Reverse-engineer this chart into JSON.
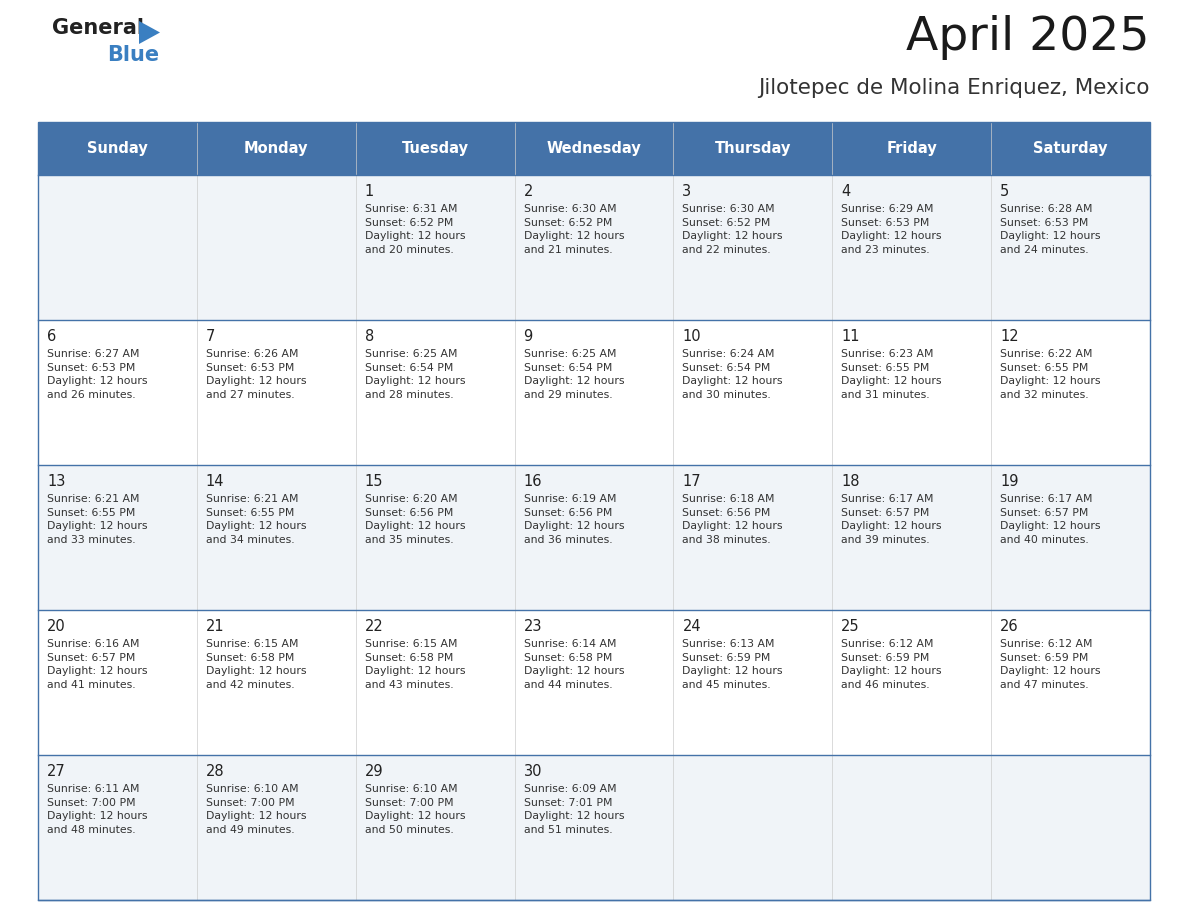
{
  "title": "April 2025",
  "subtitle": "Jilotepec de Molina Enriquez, Mexico",
  "header_bg_color": "#4472a8",
  "header_text_color": "#ffffff",
  "row_bg_even": "#f0f4f8",
  "row_bg_odd": "#ffffff",
  "border_color": "#4472a8",
  "text_color": "#222222",
  "info_color": "#333333",
  "days_of_week": [
    "Sunday",
    "Monday",
    "Tuesday",
    "Wednesday",
    "Thursday",
    "Friday",
    "Saturday"
  ],
  "weeks": [
    [
      {
        "day": "",
        "info": ""
      },
      {
        "day": "",
        "info": ""
      },
      {
        "day": "1",
        "info": "Sunrise: 6:31 AM\nSunset: 6:52 PM\nDaylight: 12 hours\nand 20 minutes."
      },
      {
        "day": "2",
        "info": "Sunrise: 6:30 AM\nSunset: 6:52 PM\nDaylight: 12 hours\nand 21 minutes."
      },
      {
        "day": "3",
        "info": "Sunrise: 6:30 AM\nSunset: 6:52 PM\nDaylight: 12 hours\nand 22 minutes."
      },
      {
        "day": "4",
        "info": "Sunrise: 6:29 AM\nSunset: 6:53 PM\nDaylight: 12 hours\nand 23 minutes."
      },
      {
        "day": "5",
        "info": "Sunrise: 6:28 AM\nSunset: 6:53 PM\nDaylight: 12 hours\nand 24 minutes."
      }
    ],
    [
      {
        "day": "6",
        "info": "Sunrise: 6:27 AM\nSunset: 6:53 PM\nDaylight: 12 hours\nand 26 minutes."
      },
      {
        "day": "7",
        "info": "Sunrise: 6:26 AM\nSunset: 6:53 PM\nDaylight: 12 hours\nand 27 minutes."
      },
      {
        "day": "8",
        "info": "Sunrise: 6:25 AM\nSunset: 6:54 PM\nDaylight: 12 hours\nand 28 minutes."
      },
      {
        "day": "9",
        "info": "Sunrise: 6:25 AM\nSunset: 6:54 PM\nDaylight: 12 hours\nand 29 minutes."
      },
      {
        "day": "10",
        "info": "Sunrise: 6:24 AM\nSunset: 6:54 PM\nDaylight: 12 hours\nand 30 minutes."
      },
      {
        "day": "11",
        "info": "Sunrise: 6:23 AM\nSunset: 6:55 PM\nDaylight: 12 hours\nand 31 minutes."
      },
      {
        "day": "12",
        "info": "Sunrise: 6:22 AM\nSunset: 6:55 PM\nDaylight: 12 hours\nand 32 minutes."
      }
    ],
    [
      {
        "day": "13",
        "info": "Sunrise: 6:21 AM\nSunset: 6:55 PM\nDaylight: 12 hours\nand 33 minutes."
      },
      {
        "day": "14",
        "info": "Sunrise: 6:21 AM\nSunset: 6:55 PM\nDaylight: 12 hours\nand 34 minutes."
      },
      {
        "day": "15",
        "info": "Sunrise: 6:20 AM\nSunset: 6:56 PM\nDaylight: 12 hours\nand 35 minutes."
      },
      {
        "day": "16",
        "info": "Sunrise: 6:19 AM\nSunset: 6:56 PM\nDaylight: 12 hours\nand 36 minutes."
      },
      {
        "day": "17",
        "info": "Sunrise: 6:18 AM\nSunset: 6:56 PM\nDaylight: 12 hours\nand 38 minutes."
      },
      {
        "day": "18",
        "info": "Sunrise: 6:17 AM\nSunset: 6:57 PM\nDaylight: 12 hours\nand 39 minutes."
      },
      {
        "day": "19",
        "info": "Sunrise: 6:17 AM\nSunset: 6:57 PM\nDaylight: 12 hours\nand 40 minutes."
      }
    ],
    [
      {
        "day": "20",
        "info": "Sunrise: 6:16 AM\nSunset: 6:57 PM\nDaylight: 12 hours\nand 41 minutes."
      },
      {
        "day": "21",
        "info": "Sunrise: 6:15 AM\nSunset: 6:58 PM\nDaylight: 12 hours\nand 42 minutes."
      },
      {
        "day": "22",
        "info": "Sunrise: 6:15 AM\nSunset: 6:58 PM\nDaylight: 12 hours\nand 43 minutes."
      },
      {
        "day": "23",
        "info": "Sunrise: 6:14 AM\nSunset: 6:58 PM\nDaylight: 12 hours\nand 44 minutes."
      },
      {
        "day": "24",
        "info": "Sunrise: 6:13 AM\nSunset: 6:59 PM\nDaylight: 12 hours\nand 45 minutes."
      },
      {
        "day": "25",
        "info": "Sunrise: 6:12 AM\nSunset: 6:59 PM\nDaylight: 12 hours\nand 46 minutes."
      },
      {
        "day": "26",
        "info": "Sunrise: 6:12 AM\nSunset: 6:59 PM\nDaylight: 12 hours\nand 47 minutes."
      }
    ],
    [
      {
        "day": "27",
        "info": "Sunrise: 6:11 AM\nSunset: 7:00 PM\nDaylight: 12 hours\nand 48 minutes."
      },
      {
        "day": "28",
        "info": "Sunrise: 6:10 AM\nSunset: 7:00 PM\nDaylight: 12 hours\nand 49 minutes."
      },
      {
        "day": "29",
        "info": "Sunrise: 6:10 AM\nSunset: 7:00 PM\nDaylight: 12 hours\nand 50 minutes."
      },
      {
        "day": "30",
        "info": "Sunrise: 6:09 AM\nSunset: 7:01 PM\nDaylight: 12 hours\nand 51 minutes."
      },
      {
        "day": "",
        "info": ""
      },
      {
        "day": "",
        "info": ""
      },
      {
        "day": "",
        "info": ""
      }
    ]
  ],
  "logo_triangle_color": "#3a7fc1",
  "logo_general_color": "#222222",
  "logo_blue_color": "#3a7fc1",
  "fig_width": 11.88,
  "fig_height": 9.18,
  "dpi": 100
}
